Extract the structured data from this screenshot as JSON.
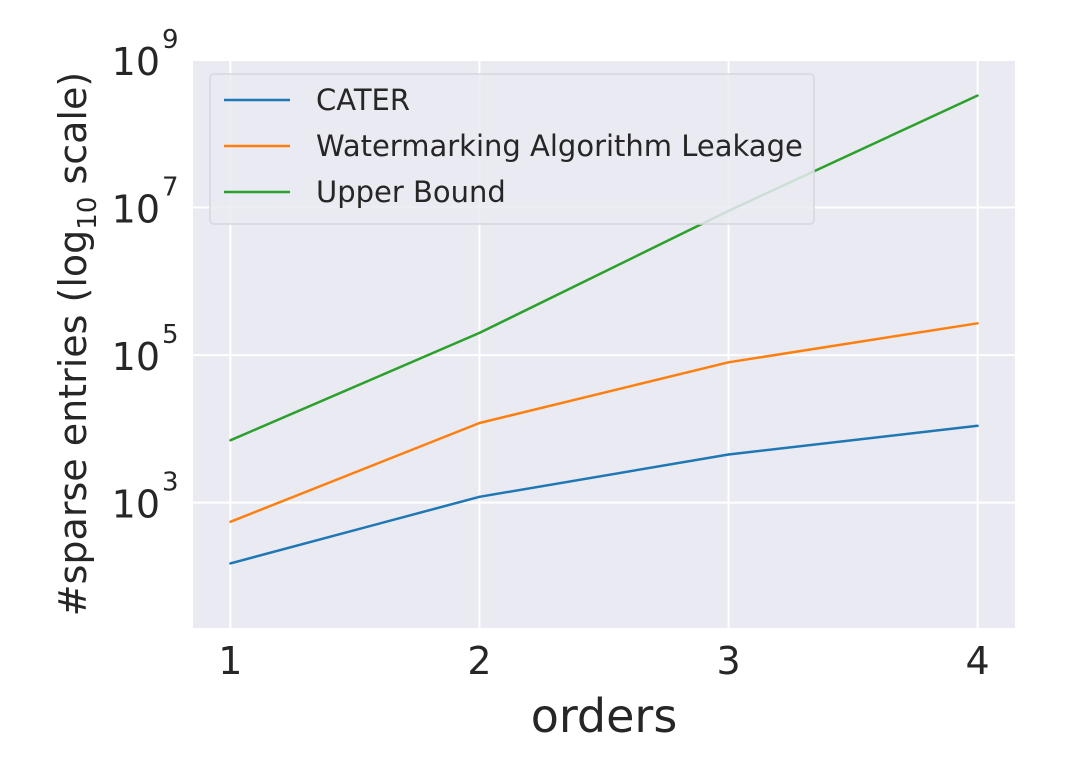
{
  "chart_data": {
    "type": "line",
    "title": "",
    "xlabel": "orders",
    "ylabel": "#sparse entries (log₁₀ scale)",
    "ylabel_parts": {
      "before": "#sparse entries (log",
      "sub": "10",
      "after": " scale)"
    },
    "y_scale": "log",
    "x": [
      1,
      2,
      3,
      4
    ],
    "x_ticks": [
      "1",
      "2",
      "3",
      "4"
    ],
    "y_ticks": [
      {
        "value": 1000,
        "base": "10",
        "exp": "3"
      },
      {
        "value": 100000,
        "base": "10",
        "exp": "5"
      },
      {
        "value": 10000000,
        "base": "10",
        "exp": "7"
      },
      {
        "value": 1000000000,
        "base": "10",
        "exp": "9"
      }
    ],
    "ylim": [
      20,
      1000000000
    ],
    "xlim": [
      0.85,
      4.15
    ],
    "grid": true,
    "legend_position": "top-left",
    "series": [
      {
        "name": "CATER",
        "color": "#1f77b4",
        "values": [
          150,
          1200,
          4500,
          11000
        ]
      },
      {
        "name": "Watermarking Algorithm Leakage",
        "color": "#ff7f0e",
        "values": [
          550,
          12000,
          80000,
          270000
        ]
      },
      {
        "name": "Upper Bound",
        "color": "#2ca02c",
        "values": [
          7000,
          200000,
          9000000,
          330000000
        ]
      }
    ]
  }
}
